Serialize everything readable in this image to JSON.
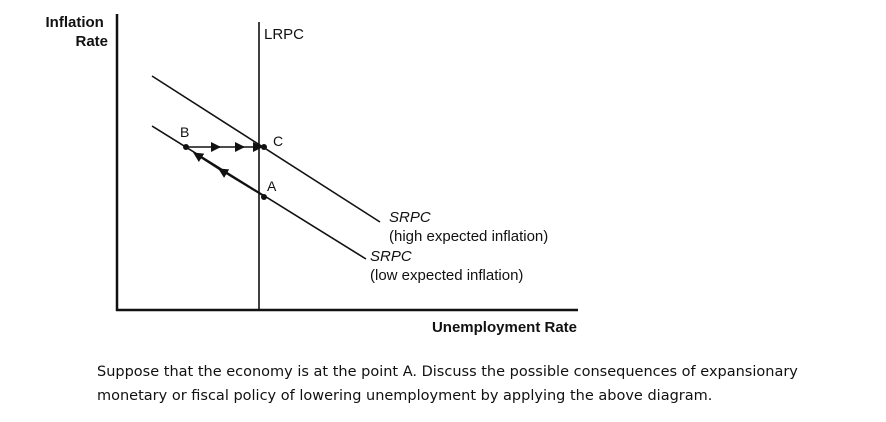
{
  "diagram": {
    "y_axis_title": [
      "Inflation",
      "Rate"
    ],
    "x_axis_title": "Unemployment Rate",
    "lrpc_label": "LRPC",
    "srpc_high_label": [
      "SRPC",
      "(high expected inflation)"
    ],
    "srpc_low_label": [
      "SRPC",
      "(low expected inflation)"
    ],
    "points": [
      "A",
      "B",
      "C"
    ]
  },
  "question": {
    "text": "Suppose that the economy is at the point A. Discuss the possible consequences of expansionary\nmonetary or fiscal policy of lowering unemployment by applying the above diagram."
  }
}
